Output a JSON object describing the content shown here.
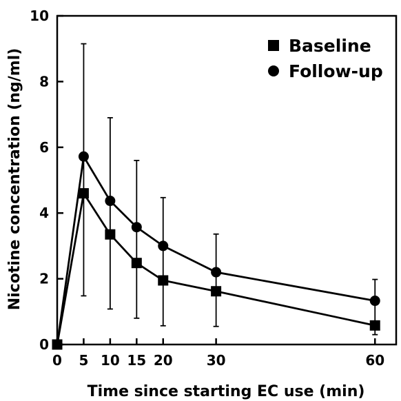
{
  "chart_data": {
    "type": "line",
    "title": "",
    "xlabel": "Time since starting EC use (min)",
    "ylabel": "Nicotine concentration (ng/ml)",
    "xlim": [
      0,
      64
    ],
    "ylim": [
      0,
      10
    ],
    "x_ticks": [
      0,
      5,
      10,
      15,
      20,
      30,
      60
    ],
    "y_ticks": [
      0,
      2,
      4,
      6,
      8,
      10
    ],
    "grid": false,
    "legend_position": "top-right",
    "x": [
      0,
      5,
      10,
      15,
      20,
      30,
      60
    ],
    "series": [
      {
        "name": "Baseline",
        "marker": "square",
        "values": [
          0,
          4.6,
          3.35,
          2.48,
          1.95,
          1.62,
          0.58
        ],
        "error_upper": [
          0,
          9.15,
          6.9,
          5.6,
          4.47,
          3.36,
          1.98
        ],
        "error_lower": [
          0,
          1.48,
          1.08,
          0.8,
          0.57,
          0.55,
          0.3
        ]
      },
      {
        "name": "Follow-up",
        "marker": "circle",
        "values": [
          0,
          5.72,
          4.37,
          3.57,
          3.0,
          2.2,
          1.33
        ],
        "error_upper": null,
        "error_lower": null
      }
    ],
    "colors": {
      "line": "#000000",
      "marker": "#000000"
    }
  }
}
